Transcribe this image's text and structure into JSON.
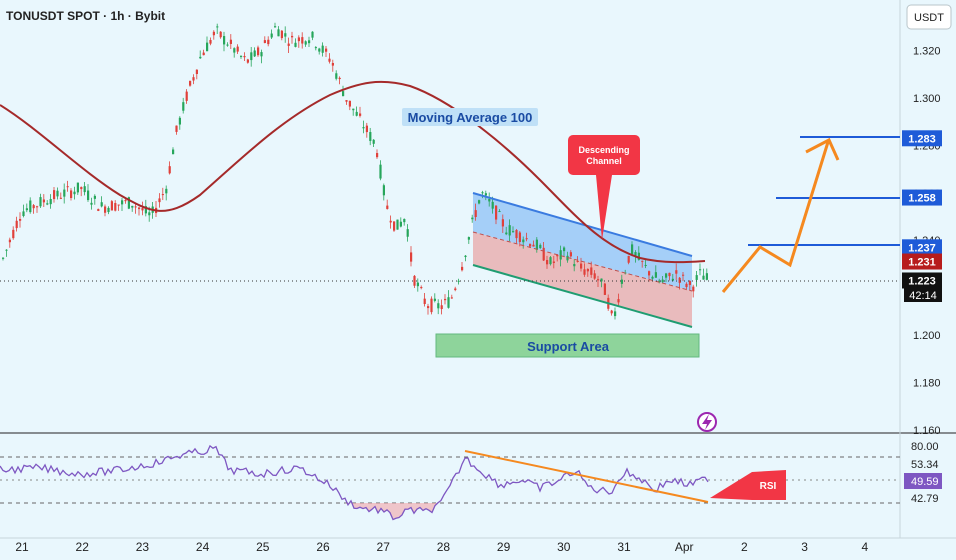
{
  "header": {
    "title": "TONUSDT SPOT · 1h · Bybit",
    "currency_button": "USDT"
  },
  "price_axis": {
    "ticks": [
      "1.320",
      "1.300",
      "1.280",
      "1.260",
      "1.240",
      "1.200",
      "1.180",
      "1.160"
    ],
    "tick_values": [
      1.32,
      1.3,
      1.28,
      1.26,
      1.24,
      1.2,
      1.18,
      1.16
    ]
  },
  "price_badges": [
    {
      "label": "1.283",
      "value": 1.283,
      "color": "#1e5bd8"
    },
    {
      "label": "1.258",
      "value": 1.258,
      "color": "#1e5bd8"
    },
    {
      "label": "1.237",
      "value": 1.237,
      "color": "#1e5bd8"
    },
    {
      "label": "1.231",
      "value": 1.231,
      "color": "#b71c1c"
    },
    {
      "label": "1.223",
      "value": 1.223,
      "color": "#111111"
    }
  ],
  "countdown": "42:14",
  "date_axis": {
    "labels": [
      "21",
      "22",
      "23",
      "24",
      "25",
      "26",
      "27",
      "28",
      "29",
      "30",
      "31",
      "Apr",
      "2",
      "3",
      "4"
    ]
  },
  "rsi_axis": {
    "ticks": [
      "80.00",
      "53.34",
      "49.59",
      "42.79"
    ],
    "tick_values": [
      80.0,
      53.34,
      49.59,
      42.79
    ]
  },
  "annotations": {
    "moving_average": "Moving Average 100",
    "descending_channel": "Descending Channel",
    "support_area": "Support Area",
    "rsi": "RSI"
  },
  "colors": {
    "background": "#e9f7fd",
    "up_candle": "#26a65b",
    "down_candle": "#e0403a",
    "moving_average": "#a52a2a",
    "channel_upper": "#3a7be0",
    "channel_lower": "#1f9d72",
    "channel_fill_blue": "#8ec2f5",
    "channel_fill_red": "#e8a7a7",
    "projection": "#f5891f",
    "target_line": "#1e5bd8",
    "support_fill": "#7fcf8a",
    "rsi_line": "#7e57c2",
    "rsi_divergence": "#f5891f",
    "callout_red": "#f23645"
  },
  "chart_data": [
    {
      "type": "candlestick",
      "title": "TONUSDT SPOT · 1h · Bybit",
      "x_labels": [
        "21",
        "22",
        "23",
        "24",
        "25",
        "26",
        "27",
        "28",
        "29",
        "30",
        "31",
        "Apr",
        "2",
        "3",
        "4"
      ],
      "ylim": [
        1.155,
        1.333
      ],
      "overlays": [
        "Moving Average 100",
        "Descending Channel",
        "Support Area"
      ],
      "key_levels": [
        1.283,
        1.258,
        1.237,
        1.231,
        1.223
      ],
      "support_area": [
        1.197,
        1.202
      ],
      "last_price": 1.223
    },
    {
      "type": "line",
      "title": "RSI",
      "levels": [
        80.0,
        53.34,
        49.59,
        42.79
      ],
      "last_value": 49.59
    }
  ]
}
